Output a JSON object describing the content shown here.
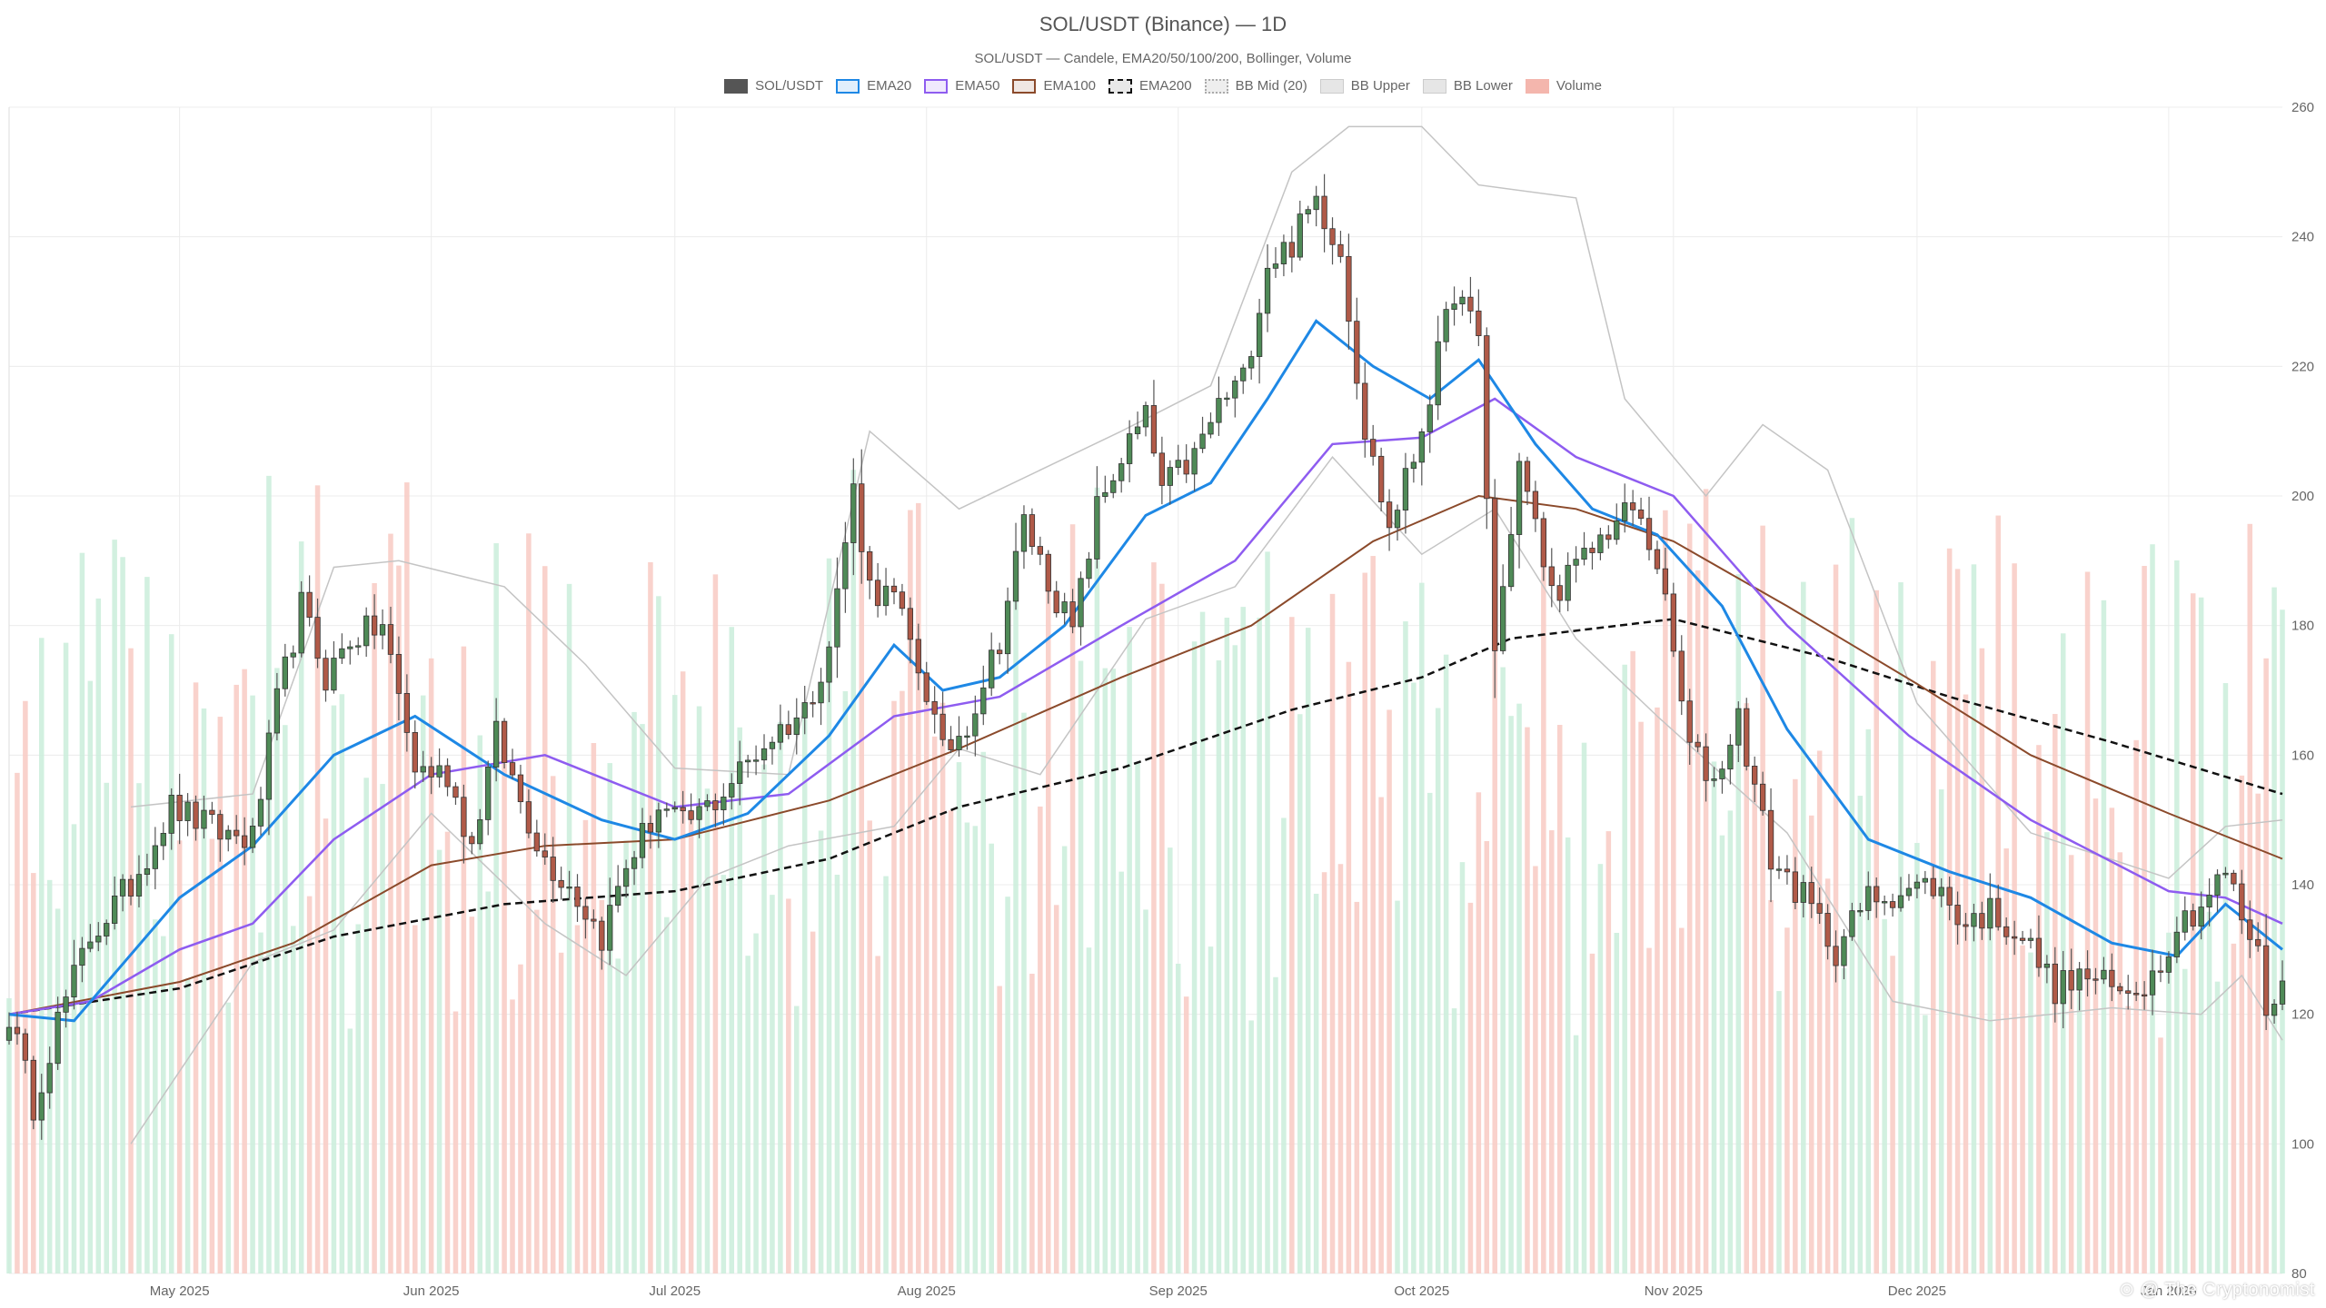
{
  "chart_data": {
    "type": "candlestick",
    "title": "SOL/USDT (Binance) — 1D",
    "subtitle": "SOL/USDT — Candele, EMA20/50/100/200, Bollinger, Volume",
    "legend": [
      {
        "label": "SOL/USDT",
        "color": "#555555",
        "style": "fill"
      },
      {
        "label": "EMA20",
        "color": "#1e88e5",
        "style": "line"
      },
      {
        "label": "EMA50",
        "color": "#8e5cf0",
        "style": "line"
      },
      {
        "label": "EMA100",
        "color": "#8b4a2b",
        "style": "line"
      },
      {
        "label": "EMA200",
        "color": "#111111",
        "style": "dash"
      },
      {
        "label": "BB Mid (20)",
        "color": "#aaaaaa",
        "style": "dot"
      },
      {
        "label": "BB Upper",
        "color": "#bbbbbb",
        "style": "thin"
      },
      {
        "label": "BB Lower",
        "color": "#bbbbbb",
        "style": "thin"
      },
      {
        "label": "Volume",
        "color": "#f4b6ad",
        "style": "fill"
      }
    ],
    "y_axis": {
      "min": 80,
      "max": 260,
      "ticks": [
        80,
        100,
        120,
        140,
        160,
        180,
        200,
        220,
        240,
        260
      ],
      "position": "right"
    },
    "x_axis": {
      "range": [
        "2025-04-10",
        "2026-01-15"
      ],
      "ticks": [
        {
          "date": "2025-05-01",
          "label": "May 2025"
        },
        {
          "date": "2025-06-01",
          "label": "Jun 2025"
        },
        {
          "date": "2025-07-01",
          "label": "Jul 2025"
        },
        {
          "date": "2025-08-01",
          "label": "Aug 2025"
        },
        {
          "date": "2025-09-01",
          "label": "Sep 2025"
        },
        {
          "date": "2025-10-01",
          "label": "Oct 2025"
        },
        {
          "date": "2025-11-01",
          "label": "Nov 2025"
        },
        {
          "date": "2025-12-01",
          "label": "Dec 2025"
        },
        {
          "date": "2026-01-01",
          "label": "Jan 2026"
        }
      ]
    },
    "grid": true,
    "colors": {
      "up": "#4f8a57",
      "down": "#b05a48",
      "vol_up": "#cdeedd",
      "vol_down": "#f8cdc6"
    },
    "close_path": [
      [
        "2025-04-10",
        120
      ],
      [
        "2025-04-13",
        106
      ],
      [
        "2025-04-16",
        119
      ],
      [
        "2025-04-20",
        132
      ],
      [
        "2025-04-25",
        140
      ],
      [
        "2025-04-30",
        152
      ],
      [
        "2025-05-06",
        148
      ],
      [
        "2025-05-10",
        147
      ],
      [
        "2025-05-13",
        168
      ],
      [
        "2025-05-16",
        183
      ],
      [
        "2025-05-19",
        172
      ],
      [
        "2025-05-22",
        178
      ],
      [
        "2025-05-26",
        180
      ],
      [
        "2025-05-30",
        158
      ],
      [
        "2025-06-03",
        157
      ],
      [
        "2025-06-06",
        146
      ],
      [
        "2025-06-09",
        163
      ],
      [
        "2025-06-12",
        153
      ],
      [
        "2025-06-15",
        144
      ],
      [
        "2025-06-18",
        140
      ],
      [
        "2025-06-22",
        132
      ],
      [
        "2025-06-25",
        143
      ],
      [
        "2025-06-29",
        152
      ],
      [
        "2025-07-02",
        149
      ],
      [
        "2025-07-06",
        153
      ],
      [
        "2025-07-10",
        159
      ],
      [
        "2025-07-13",
        163
      ],
      [
        "2025-07-17",
        167
      ],
      [
        "2025-07-20",
        177
      ],
      [
        "2025-07-23",
        201
      ],
      [
        "2025-07-25",
        186
      ],
      [
        "2025-07-28",
        184
      ],
      [
        "2025-08-01",
        170
      ],
      [
        "2025-08-03",
        160
      ],
      [
        "2025-08-06",
        165
      ],
      [
        "2025-08-10",
        178
      ],
      [
        "2025-08-13",
        196
      ],
      [
        "2025-08-16",
        187
      ],
      [
        "2025-08-19",
        179
      ],
      [
        "2025-08-22",
        198
      ],
      [
        "2025-08-25",
        206
      ],
      [
        "2025-08-28",
        212
      ],
      [
        "2025-08-30",
        201
      ],
      [
        "2025-09-03",
        206
      ],
      [
        "2025-09-06",
        214
      ],
      [
        "2025-09-09",
        218
      ],
      [
        "2025-09-12",
        236
      ],
      [
        "2025-09-15",
        239
      ],
      [
        "2025-09-18",
        246
      ],
      [
        "2025-09-21",
        238
      ],
      [
        "2025-09-24",
        210
      ],
      [
        "2025-09-27",
        195
      ],
      [
        "2025-09-30",
        206
      ],
      [
        "2025-10-02",
        216
      ],
      [
        "2025-10-05",
        232
      ],
      [
        "2025-10-08",
        224
      ],
      [
        "2025-10-10",
        176
      ],
      [
        "2025-10-13",
        205
      ],
      [
        "2025-10-17",
        185
      ],
      [
        "2025-10-21",
        190
      ],
      [
        "2025-10-24",
        195
      ],
      [
        "2025-10-27",
        198
      ],
      [
        "2025-10-30",
        190
      ],
      [
        "2025-11-03",
        161
      ],
      [
        "2025-11-06",
        156
      ],
      [
        "2025-11-09",
        166
      ],
      [
        "2025-11-13",
        144
      ],
      [
        "2025-11-17",
        138
      ],
      [
        "2025-11-21",
        130
      ],
      [
        "2025-11-25",
        138
      ],
      [
        "2025-11-29",
        139
      ],
      [
        "2025-12-03",
        140
      ],
      [
        "2025-12-07",
        134
      ],
      [
        "2025-12-10",
        136
      ],
      [
        "2025-12-14",
        132
      ],
      [
        "2025-12-18",
        124
      ],
      [
        "2025-12-22",
        126
      ],
      [
        "2025-12-26",
        123
      ],
      [
        "2025-12-30",
        126
      ],
      [
        "2026-01-02",
        134
      ],
      [
        "2026-01-05",
        137
      ],
      [
        "2026-01-08",
        142
      ],
      [
        "2026-01-10",
        135
      ],
      [
        "2026-01-12",
        129
      ],
      [
        "2026-01-13",
        121
      ],
      [
        "2026-01-15",
        125
      ]
    ],
    "ema20_path": [
      [
        "2025-04-10",
        120
      ],
      [
        "2025-04-18",
        119
      ],
      [
        "2025-05-01",
        138
      ],
      [
        "2025-05-10",
        146
      ],
      [
        "2025-05-20",
        160
      ],
      [
        "2025-05-30",
        166
      ],
      [
        "2025-06-10",
        157
      ],
      [
        "2025-06-22",
        150
      ],
      [
        "2025-07-01",
        147
      ],
      [
        "2025-07-10",
        151
      ],
      [
        "2025-07-20",
        163
      ],
      [
        "2025-07-28",
        177
      ],
      [
        "2025-08-03",
        170
      ],
      [
        "2025-08-10",
        172
      ],
      [
        "2025-08-18",
        180
      ],
      [
        "2025-08-28",
        197
      ],
      [
        "2025-09-05",
        202
      ],
      [
        "2025-09-12",
        215
      ],
      [
        "2025-09-18",
        227
      ],
      [
        "2025-09-25",
        220
      ],
      [
        "2025-10-02",
        215
      ],
      [
        "2025-10-08",
        221
      ],
      [
        "2025-10-15",
        208
      ],
      [
        "2025-10-22",
        198
      ],
      [
        "2025-10-30",
        194
      ],
      [
        "2025-11-07",
        183
      ],
      [
        "2025-11-15",
        164
      ],
      [
        "2025-11-25",
        147
      ],
      [
        "2025-12-05",
        142
      ],
      [
        "2025-12-15",
        138
      ],
      [
        "2025-12-25",
        131
      ],
      [
        "2026-01-02",
        129
      ],
      [
        "2026-01-08",
        137
      ],
      [
        "2026-01-15",
        130
      ]
    ],
    "ema50_path": [
      [
        "2025-04-10",
        120
      ],
      [
        "2025-04-20",
        122
      ],
      [
        "2025-05-01",
        130
      ],
      [
        "2025-05-10",
        134
      ],
      [
        "2025-05-20",
        147
      ],
      [
        "2025-06-01",
        157
      ],
      [
        "2025-06-15",
        160
      ],
      [
        "2025-07-01",
        152
      ],
      [
        "2025-07-15",
        154
      ],
      [
        "2025-07-28",
        166
      ],
      [
        "2025-08-10",
        169
      ],
      [
        "2025-08-25",
        180
      ],
      [
        "2025-09-08",
        190
      ],
      [
        "2025-09-20",
        208
      ],
      [
        "2025-10-01",
        209
      ],
      [
        "2025-10-10",
        215
      ],
      [
        "2025-10-20",
        206
      ],
      [
        "2025-11-01",
        200
      ],
      [
        "2025-11-15",
        180
      ],
      [
        "2025-11-30",
        163
      ],
      [
        "2025-12-15",
        150
      ],
      [
        "2026-01-01",
        139
      ],
      [
        "2026-01-08",
        138
      ],
      [
        "2026-01-15",
        134
      ]
    ],
    "ema100_path": [
      [
        "2025-04-10",
        120
      ],
      [
        "2025-05-01",
        125
      ],
      [
        "2025-05-15",
        131
      ],
      [
        "2025-06-01",
        143
      ],
      [
        "2025-06-15",
        146
      ],
      [
        "2025-07-01",
        147
      ],
      [
        "2025-07-20",
        153
      ],
      [
        "2025-08-05",
        161
      ],
      [
        "2025-08-25",
        172
      ],
      [
        "2025-09-10",
        180
      ],
      [
        "2025-09-25",
        193
      ],
      [
        "2025-10-08",
        200
      ],
      [
        "2025-10-20",
        198
      ],
      [
        "2025-11-01",
        193
      ],
      [
        "2025-11-15",
        183
      ],
      [
        "2025-12-01",
        171
      ],
      [
        "2025-12-15",
        160
      ],
      [
        "2026-01-01",
        151
      ],
      [
        "2026-01-15",
        144
      ]
    ],
    "ema200_path": [
      [
        "2025-04-10",
        120
      ],
      [
        "2025-05-01",
        124
      ],
      [
        "2025-05-20",
        132
      ],
      [
        "2025-06-10",
        137
      ],
      [
        "2025-07-01",
        139
      ],
      [
        "2025-07-20",
        144
      ],
      [
        "2025-08-05",
        152
      ],
      [
        "2025-08-25",
        158
      ],
      [
        "2025-09-15",
        167
      ],
      [
        "2025-10-01",
        172
      ],
      [
        "2025-10-12",
        178
      ],
      [
        "2025-11-01",
        181
      ],
      [
        "2025-11-20",
        175
      ],
      [
        "2025-12-05",
        169
      ],
      [
        "2025-12-25",
        162
      ],
      [
        "2026-01-15",
        154
      ]
    ],
    "bb_upper_path": [
      [
        "2025-04-25",
        152
      ],
      [
        "2025-05-10",
        154
      ],
      [
        "2025-05-20",
        189
      ],
      [
        "2025-05-28",
        190
      ],
      [
        "2025-06-10",
        186
      ],
      [
        "2025-06-20",
        174
      ],
      [
        "2025-07-01",
        158
      ],
      [
        "2025-07-15",
        157
      ],
      [
        "2025-07-25",
        210
      ],
      [
        "2025-08-05",
        198
      ],
      [
        "2025-08-25",
        210
      ],
      [
        "2025-09-05",
        217
      ],
      [
        "2025-09-15",
        250
      ],
      [
        "2025-09-22",
        257
      ],
      [
        "2025-10-01",
        257
      ],
      [
        "2025-10-08",
        248
      ],
      [
        "2025-10-20",
        246
      ],
      [
        "2025-10-26",
        215
      ],
      [
        "2025-11-05",
        200
      ],
      [
        "2025-11-12",
        211
      ],
      [
        "2025-11-20",
        204
      ],
      [
        "2025-12-01",
        168
      ],
      [
        "2025-12-15",
        148
      ],
      [
        "2026-01-01",
        141
      ],
      [
        "2026-01-08",
        149
      ],
      [
        "2026-01-15",
        150
      ]
    ],
    "bb_lower_path": [
      [
        "2025-04-25",
        100
      ],
      [
        "2025-05-10",
        128
      ],
      [
        "2025-05-20",
        133
      ],
      [
        "2025-06-01",
        151
      ],
      [
        "2025-06-15",
        134
      ],
      [
        "2025-06-25",
        126
      ],
      [
        "2025-07-05",
        141
      ],
      [
        "2025-07-15",
        146
      ],
      [
        "2025-07-28",
        149
      ],
      [
        "2025-08-05",
        161
      ],
      [
        "2025-08-15",
        157
      ],
      [
        "2025-08-28",
        181
      ],
      [
        "2025-09-08",
        186
      ],
      [
        "2025-09-20",
        206
      ],
      [
        "2025-10-01",
        191
      ],
      [
        "2025-10-10",
        198
      ],
      [
        "2025-10-20",
        178
      ],
      [
        "2025-10-30",
        166
      ],
      [
        "2025-11-15",
        148
      ],
      [
        "2025-11-28",
        122
      ],
      [
        "2025-12-10",
        119
      ],
      [
        "2025-12-25",
        121
      ],
      [
        "2026-01-05",
        120
      ],
      [
        "2026-01-10",
        126
      ],
      [
        "2026-01-15",
        116
      ]
    ]
  }
}
